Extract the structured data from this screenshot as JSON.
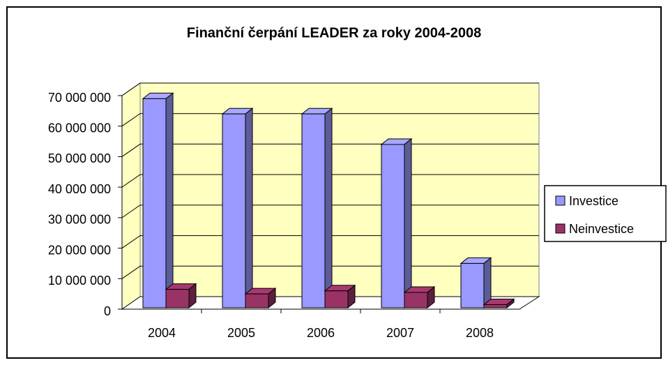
{
  "chart_data": {
    "type": "bar3d",
    "title": "Finanční čerpání LEADER za roky 2004-2008",
    "categories": [
      "2004",
      "2005",
      "2006",
      "2007",
      "2008"
    ],
    "series": [
      {
        "name": "Investice",
        "color": "#9999ff",
        "values": [
          69000000,
          64000000,
          64000000,
          54000000,
          15000000
        ]
      },
      {
        "name": "Neinvestice",
        "color": "#993366",
        "values": [
          6500000,
          5000000,
          6000000,
          5500000,
          1500000
        ]
      }
    ],
    "ylim": [
      0,
      70000000
    ],
    "yticks": [
      0,
      {
        "value": 10000000,
        "label": "10 000 000"
      },
      {
        "value": 20000000,
        "label": "20 000 000"
      },
      {
        "value": 30000000,
        "label": "30 000 000"
      },
      {
        "value": 40000000,
        "label": "40 000 000"
      },
      {
        "value": 50000000,
        "label": "50 000 000"
      },
      {
        "value": 60000000,
        "label": "60 000 000"
      },
      {
        "value": 70000000,
        "label": "70 000 000"
      }
    ],
    "grid": true,
    "legend": "right"
  }
}
